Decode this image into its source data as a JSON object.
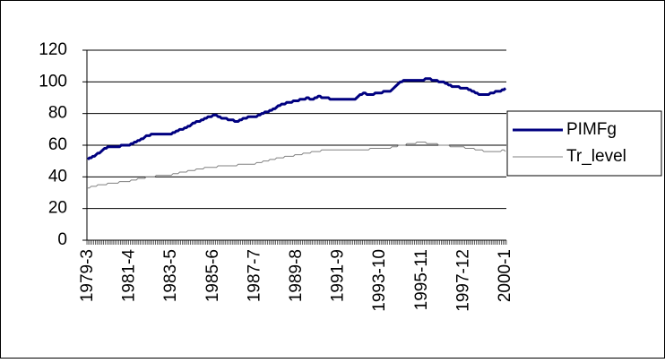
{
  "chart_data": {
    "type": "line",
    "categories": [
      "1979-3",
      null,
      null,
      null,
      null,
      null,
      null,
      null,
      null,
      null,
      null,
      null,
      null,
      null,
      null,
      null,
      null,
      null,
      null,
      null,
      null,
      null,
      null,
      null,
      null,
      "1981-4",
      null,
      null,
      null,
      null,
      null,
      null,
      null,
      null,
      null,
      null,
      null,
      null,
      null,
      null,
      null,
      null,
      null,
      null,
      null,
      null,
      null,
      null,
      null,
      null,
      "1983-5",
      null,
      null,
      null,
      null,
      null,
      null,
      null,
      null,
      null,
      null,
      null,
      null,
      null,
      null,
      null,
      null,
      null,
      null,
      null,
      null,
      null,
      null,
      null,
      null,
      "1985-6",
      null,
      null,
      null,
      null,
      null,
      null,
      null,
      null,
      null,
      null,
      null,
      null,
      null,
      null,
      null,
      null,
      null,
      null,
      null,
      null,
      null,
      null,
      null,
      null,
      "1987-7",
      null,
      null,
      null,
      null,
      null,
      null,
      null,
      null,
      null,
      null,
      null,
      null,
      null,
      null,
      null,
      null,
      null,
      null,
      null,
      null,
      null,
      null,
      null,
      null,
      "1989-8",
      null,
      null,
      null,
      null,
      null,
      null,
      null,
      null,
      null,
      null,
      null,
      null,
      null,
      null,
      null,
      null,
      null,
      null,
      null,
      null,
      null,
      null,
      null,
      null,
      "1991-9",
      null,
      null,
      null,
      null,
      null,
      null,
      null,
      null,
      null,
      null,
      null,
      null,
      null,
      null,
      null,
      null,
      null,
      null,
      null,
      null,
      null,
      null,
      null,
      null,
      "1993-10",
      null,
      null,
      null,
      null,
      null,
      null,
      null,
      null,
      null,
      null,
      null,
      null,
      null,
      null,
      null,
      null,
      null,
      null,
      null,
      null,
      null,
      null,
      null,
      null,
      "1995-11",
      null,
      null,
      null,
      null,
      null,
      null,
      null,
      null,
      null,
      null,
      null,
      null,
      null,
      null,
      null,
      null,
      null,
      null,
      null,
      null,
      null,
      null,
      null,
      null,
      "1997-12",
      null,
      null,
      null,
      null,
      null,
      null,
      null,
      null,
      null,
      null,
      null,
      null,
      null,
      null,
      null,
      null,
      null,
      null,
      null,
      null,
      null,
      null,
      null,
      null,
      "2000-1"
    ],
    "series": [
      {
        "name": "PIMFg",
        "color": "#000080",
        "width": 3,
        "values": [
          51,
          52,
          52,
          53,
          53,
          54,
          55,
          55,
          56,
          57,
          58,
          58,
          59,
          59,
          59,
          59,
          59,
          59,
          59,
          59,
          60,
          60,
          60,
          60,
          60,
          60,
          61,
          61,
          62,
          62,
          63,
          63,
          64,
          64,
          65,
          66,
          66,
          66,
          67,
          67,
          67,
          67,
          67,
          67,
          67,
          67,
          67,
          67,
          67,
          67,
          67,
          68,
          68,
          69,
          69,
          70,
          70,
          70,
          71,
          71,
          72,
          72,
          73,
          74,
          74,
          75,
          75,
          75,
          76,
          76,
          77,
          77,
          78,
          78,
          78,
          79,
          79,
          79,
          78,
          78,
          77,
          77,
          77,
          77,
          76,
          76,
          76,
          76,
          75,
          75,
          75,
          76,
          76,
          77,
          77,
          77,
          78,
          78,
          78,
          78,
          78,
          78,
          79,
          79,
          80,
          80,
          81,
          81,
          81,
          82,
          82,
          83,
          83,
          84,
          85,
          85,
          86,
          86,
          86,
          87,
          87,
          87,
          87,
          88,
          88,
          88,
          88,
          89,
          89,
          89,
          89,
          90,
          90,
          89,
          89,
          89,
          90,
          90,
          91,
          91,
          90,
          90,
          90,
          90,
          90,
          89,
          89,
          89,
          89,
          89,
          89,
          89,
          89,
          89,
          89,
          89,
          89,
          89,
          89,
          89,
          89,
          90,
          91,
          92,
          92,
          93,
          93,
          92,
          92,
          92,
          92,
          92,
          93,
          93,
          93,
          93,
          93,
          94,
          94,
          94,
          94,
          94,
          95,
          96,
          97,
          98,
          99,
          100,
          100,
          101,
          101,
          101,
          101,
          101,
          101,
          101,
          101,
          101,
          101,
          101,
          101,
          101,
          102,
          102,
          102,
          102,
          101,
          101,
          101,
          101,
          100,
          100,
          100,
          100,
          99,
          99,
          98,
          98,
          97,
          97,
          97,
          97,
          97,
          96,
          96,
          96,
          96,
          96,
          95,
          95,
          94,
          94,
          93,
          93,
          92,
          92,
          92,
          92,
          92,
          92,
          92,
          93,
          93,
          93,
          94,
          94,
          94,
          94,
          95,
          95,
          96
        ]
      },
      {
        "name": "Tr_level",
        "color": "#808080",
        "width": 1,
        "values": [
          33,
          33,
          34,
          34,
          34,
          34,
          35,
          35,
          35,
          35,
          35,
          35,
          36,
          36,
          36,
          36,
          36,
          36,
          36,
          37,
          37,
          37,
          37,
          37,
          37,
          37,
          38,
          38,
          38,
          38,
          39,
          39,
          39,
          39,
          39,
          40,
          40,
          40,
          40,
          40,
          40,
          41,
          41,
          41,
          41,
          41,
          41,
          41,
          41,
          41,
          41,
          42,
          42,
          42,
          42,
          43,
          43,
          43,
          43,
          43,
          44,
          44,
          44,
          44,
          44,
          45,
          45,
          45,
          45,
          45,
          46,
          46,
          46,
          46,
          46,
          46,
          46,
          46,
          47,
          47,
          47,
          47,
          47,
          47,
          47,
          47,
          47,
          47,
          47,
          47,
          48,
          48,
          48,
          48,
          48,
          48,
          48,
          48,
          48,
          48,
          48,
          49,
          49,
          49,
          49,
          50,
          50,
          50,
          50,
          51,
          51,
          51,
          51,
          52,
          52,
          52,
          52,
          52,
          53,
          53,
          53,
          53,
          53,
          53,
          54,
          54,
          54,
          54,
          54,
          55,
          55,
          55,
          55,
          55,
          56,
          56,
          56,
          56,
          56,
          56,
          57,
          57,
          57,
          57,
          57,
          57,
          57,
          57,
          57,
          57,
          57,
          57,
          57,
          57,
          57,
          57,
          57,
          57,
          57,
          57,
          57,
          57,
          57,
          57,
          57,
          57,
          57,
          57,
          57,
          58,
          58,
          58,
          58,
          58,
          58,
          58,
          58,
          58,
          58,
          58,
          58,
          58,
          59,
          59,
          59,
          59,
          60,
          60,
          60,
          60,
          60,
          61,
          61,
          61,
          61,
          61,
          61,
          62,
          62,
          62,
          62,
          62,
          62,
          61,
          61,
          61,
          61,
          61,
          61,
          61,
          60,
          60,
          60,
          60,
          60,
          60,
          60,
          59,
          59,
          59,
          59,
          59,
          59,
          59,
          59,
          59,
          58,
          58,
          58,
          58,
          58,
          58,
          57,
          57,
          57,
          57,
          57,
          56,
          56,
          56,
          56,
          56,
          56,
          56,
          56,
          56,
          56,
          56,
          57,
          57,
          56
        ]
      }
    ],
    "ylim": [
      0,
      120
    ],
    "yticks": [
      0,
      20,
      40,
      60,
      80,
      100,
      120
    ],
    "grid": true,
    "legend": "right"
  }
}
